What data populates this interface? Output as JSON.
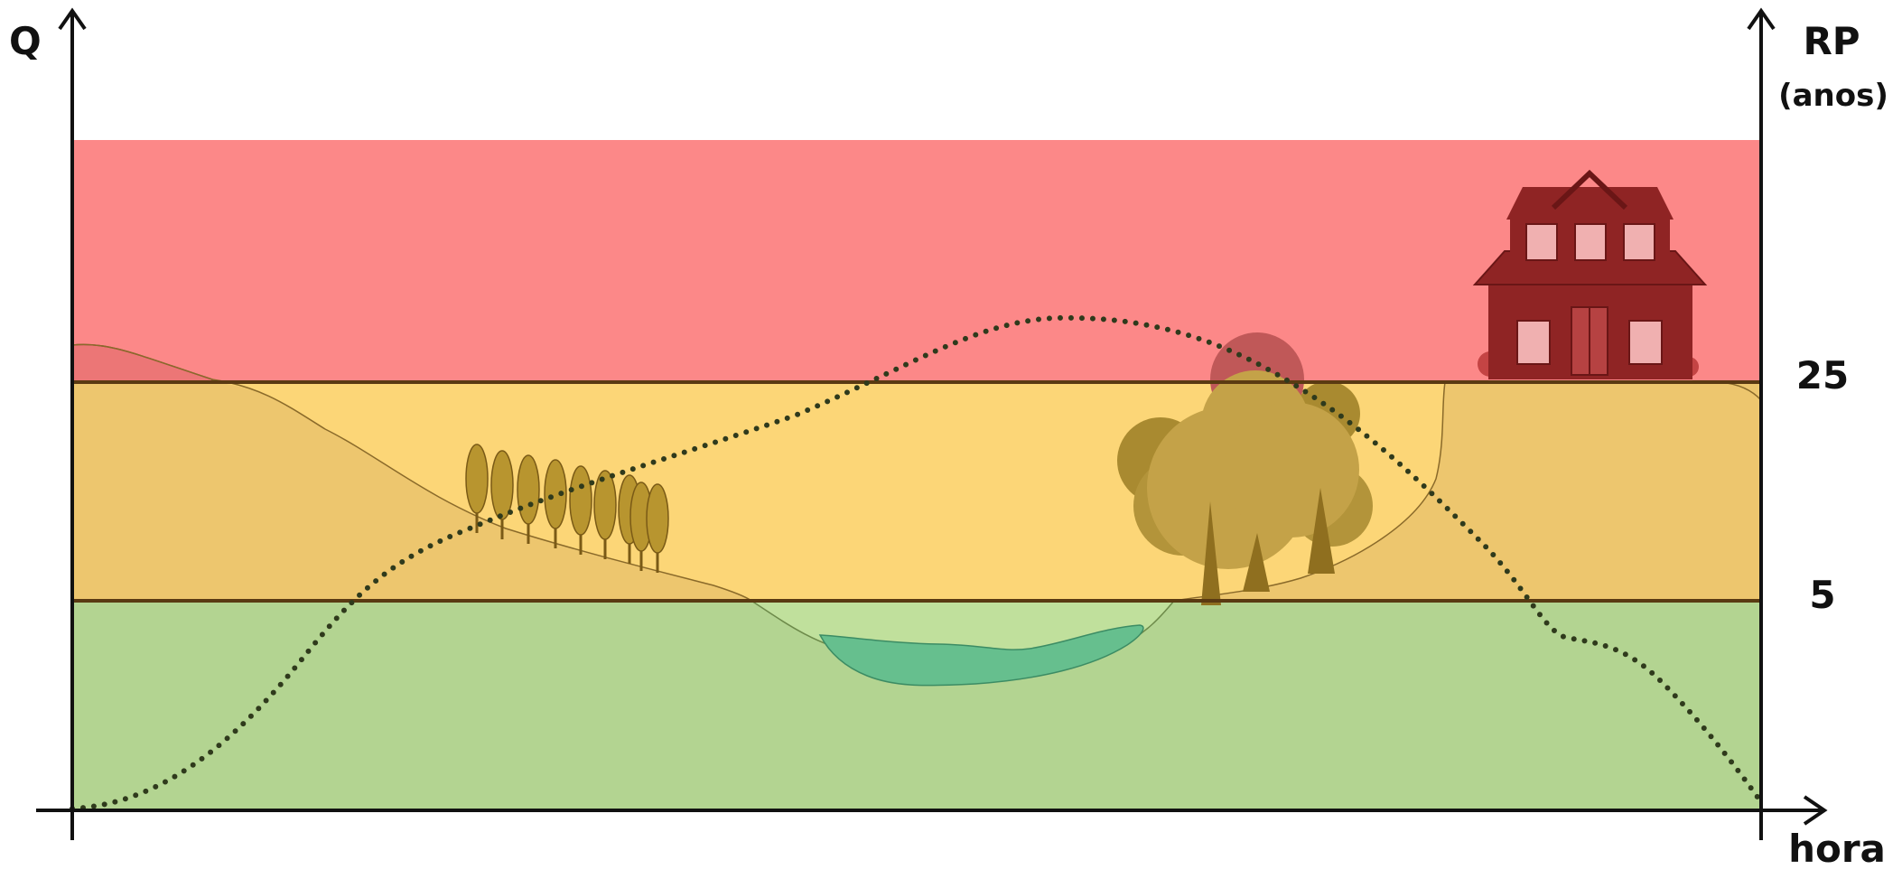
{
  "axes": {
    "y_left_label": "Q",
    "y_right_label": "RP",
    "y_right_unit": "(anos)",
    "x_label": "hora"
  },
  "thresholds": [
    {
      "value": "25"
    },
    {
      "value": "5"
    }
  ],
  "zones": {
    "high": {
      "color": "#fc8888"
    },
    "medium": {
      "color": "#fcd677"
    },
    "low": {
      "color": "#b3d491"
    }
  },
  "colors": {
    "hill": "#edc66e",
    "hill_upper": "#ec7676",
    "river_bank": "#c0e09c",
    "river_water": "#66bf8e",
    "tree": "#c4a248",
    "tree_dark": "#a98a30",
    "trunk": "#8f6f1f",
    "wheat": "#9b7a24",
    "house": "#8f2424",
    "house_light": "#b64242",
    "curve": "#2f3a1c"
  },
  "icons": [
    "wheat-field-icon",
    "tree-cluster-icon",
    "house-icon",
    "river-icon"
  ]
}
